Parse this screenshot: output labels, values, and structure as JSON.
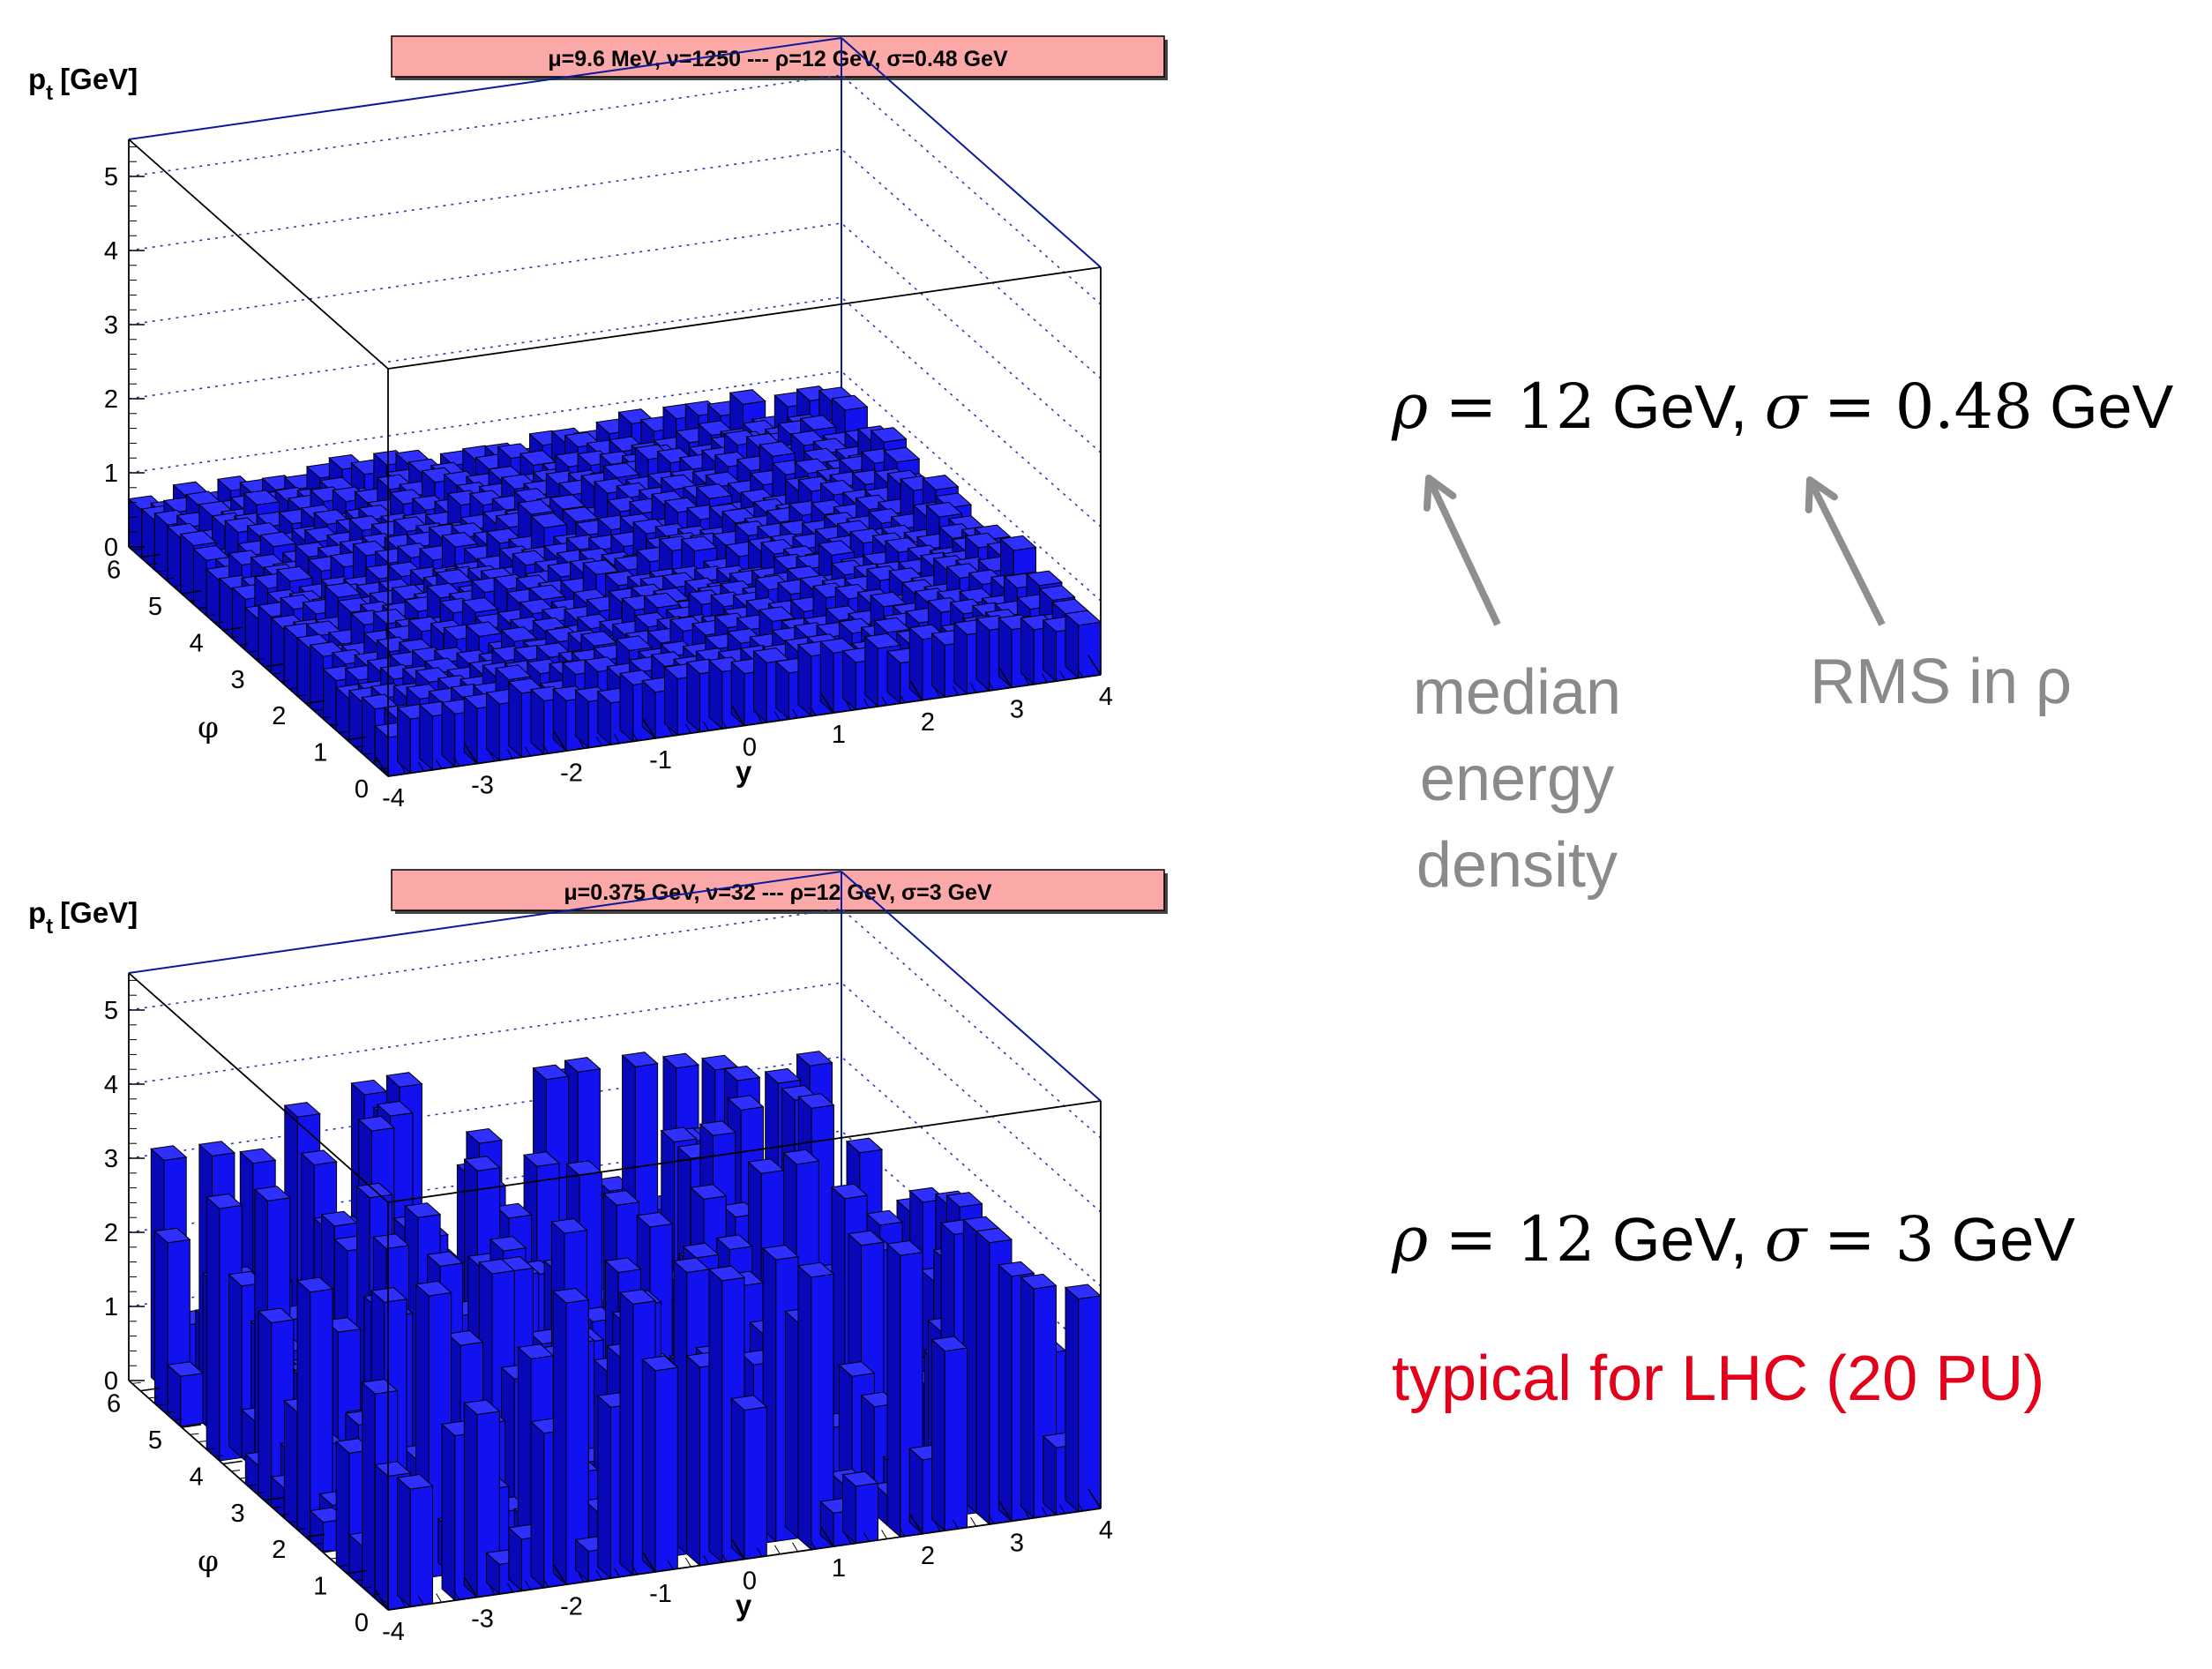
{
  "chart_data": [
    {
      "type": "bar3d",
      "title": "μ=9.6 MeV, ν=1250 --- ρ=12 GeV, σ=0.48 GeV",
      "zlabel": "p",
      "zlabel_sub": "t",
      "zlabel_unit": "[GeV]",
      "xlabel": "y",
      "ylabel": "φ",
      "x_ticks": [
        "-4",
        "-3",
        "-2",
        "-1",
        "0",
        "1",
        "2",
        "3",
        "4"
      ],
      "y_ticks": [
        "0",
        "1",
        "2",
        "3",
        "4",
        "5",
        "6"
      ],
      "z_ticks": [
        "0",
        "1",
        "2",
        "3",
        "4",
        "5"
      ],
      "xlim": [
        -4,
        4
      ],
      "ylim": [
        0,
        6.28
      ],
      "zlim": [
        0,
        5.5
      ],
      "nx": 32,
      "ny": 20,
      "mean_height": 0.7,
      "height_spread": 0.12,
      "bar_color": "#1212f0",
      "title_bg": "#fba8a8"
    },
    {
      "type": "bar3d",
      "title": "μ=0.375 GeV, ν=32 --- ρ=12 GeV, σ=3 GeV",
      "zlabel": "p",
      "zlabel_sub": "t",
      "zlabel_unit": "[GeV]",
      "xlabel": "y",
      "ylabel": "φ",
      "x_ticks": [
        "-4",
        "-3",
        "-2",
        "-1",
        "0",
        "1",
        "2",
        "3",
        "4"
      ],
      "y_ticks": [
        "0",
        "1",
        "2",
        "3",
        "4",
        "5",
        "6"
      ],
      "z_ticks": [
        "0",
        "1",
        "2",
        "3",
        "4",
        "5"
      ],
      "xlim": [
        -4,
        4
      ],
      "ylim": [
        0,
        6.28
      ],
      "zlim": [
        0,
        5.5
      ],
      "nx": 32,
      "ny": 20,
      "occupancy": 0.7,
      "max_height": 3.8,
      "bar_color": "#1212f0",
      "title_bg": "#fba8a8"
    }
  ],
  "annotations": {
    "top": {
      "rho_symbol": "ρ",
      "rho_eq": "= 12",
      "gev1": "GeV,",
      "sigma_symbol": "σ",
      "sigma_eq": "= 0.48",
      "gev2": "GeV"
    },
    "median_label": [
      "median",
      "energy",
      "density"
    ],
    "rms_label": "RMS in ρ",
    "bottom": {
      "rho_symbol": "ρ",
      "rho_eq": "= 12",
      "gev1": "GeV,",
      "sigma_symbol": "σ",
      "sigma_eq": "= 3",
      "gev2": "GeV"
    },
    "lhc_note": "typical for LHC (20 PU)"
  },
  "colors": {
    "arrow": "#8f8f8f",
    "frame_front": "#000000",
    "frame_back": "#0a1a9a",
    "grid": "#2b3bb0",
    "bar_top": "#2f2fff",
    "bar_front": "#1212f0",
    "bar_side": "#0808b8"
  }
}
